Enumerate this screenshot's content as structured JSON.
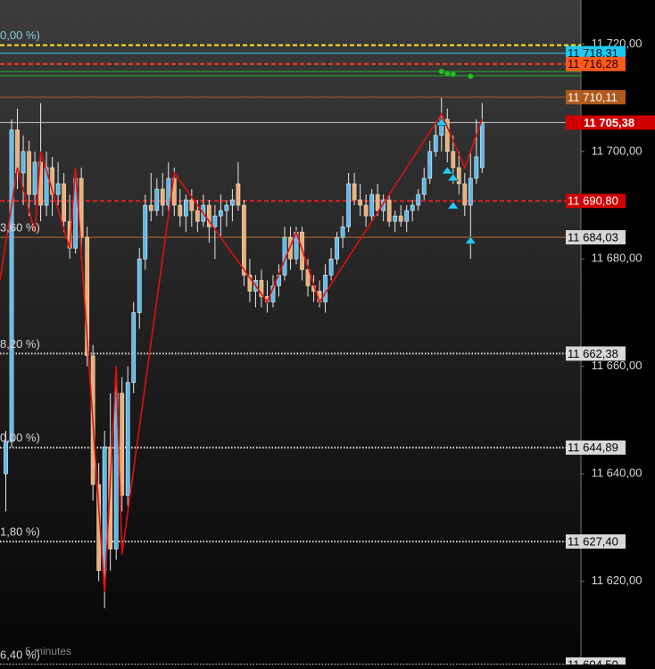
{
  "chart_data": {
    "type": "candlestick",
    "timeframe": "5 minutes",
    "xlim": [
      -1,
      99
    ],
    "ylim": [
      11604.5,
      11728.2
    ],
    "yticks": [
      {
        "value": 11620,
        "label": "11 620,00"
      },
      {
        "value": 11640,
        "label": "11 640,00"
      },
      {
        "value": 11660,
        "label": "11 660,00"
      },
      {
        "value": 11680,
        "label": "11 680,00"
      },
      {
        "value": 11700,
        "label": "11 700,00"
      },
      {
        "value": 11720,
        "label": "11 720,00"
      }
    ],
    "up_color": "#5cb9ea",
    "down_color": "#e8b07a",
    "candles": [
      [
        11640,
        11648,
        11633,
        11646
      ],
      [
        11646,
        11706,
        11645,
        11704
      ],
      [
        11704,
        11708,
        11693,
        11696
      ],
      [
        11696,
        11703,
        11690,
        11700
      ],
      [
        11700,
        11702,
        11688,
        11692
      ],
      [
        11692,
        11700,
        11690,
        11698
      ],
      [
        11698,
        11709,
        11687,
        11690
      ],
      [
        11690,
        11700,
        11688,
        11697
      ],
      [
        11697,
        11699,
        11688,
        11692
      ],
      [
        11692,
        11698,
        11690,
        11694
      ],
      [
        11694,
        11696,
        11685,
        11687
      ],
      [
        11687,
        11692,
        11680,
        11682
      ],
      [
        11682,
        11697,
        11681,
        11695
      ],
      [
        11695,
        11697,
        11680,
        11684
      ],
      [
        11684,
        11686,
        11660,
        11662
      ],
      [
        11662,
        11664,
        11635,
        11638
      ],
      [
        11638,
        11642,
        11620,
        11622
      ],
      [
        11622,
        11648,
        11615,
        11645
      ],
      [
        11645,
        11655,
        11622,
        11626
      ],
      [
        11626,
        11660,
        11624,
        11655
      ],
      [
        11655,
        11658,
        11633,
        11636
      ],
      [
        11636,
        11660,
        11634,
        11657
      ],
      [
        11657,
        11672,
        11655,
        11670
      ],
      [
        11670,
        11682,
        11667,
        11680
      ],
      [
        11680,
        11692,
        11678,
        11690
      ],
      [
        11690,
        11696,
        11687,
        11689
      ],
      [
        11689,
        11695,
        11688,
        11693
      ],
      [
        11693,
        11696,
        11688,
        11690
      ],
      [
        11690,
        11698,
        11689,
        11695
      ],
      [
        11695,
        11697,
        11688,
        11690
      ],
      [
        11690,
        11693,
        11686,
        11688
      ],
      [
        11688,
        11692,
        11685,
        11691
      ],
      [
        11691,
        11693,
        11686,
        11689
      ],
      [
        11689,
        11691,
        11685,
        11687
      ],
      [
        11687,
        11692,
        11686,
        11690
      ],
      [
        11690,
        11691,
        11683,
        11686
      ],
      [
        11686,
        11690,
        11680,
        11688
      ],
      [
        11688,
        11692,
        11684,
        11689
      ],
      [
        11689,
        11691,
        11686,
        11690
      ],
      [
        11690,
        11693,
        11687,
        11691
      ],
      [
        11694,
        11698,
        11689,
        11690
      ],
      [
        11690,
        11691,
        11675,
        11677
      ],
      [
        11677,
        11680,
        11672,
        11674
      ],
      [
        11674,
        11677,
        11671,
        11676
      ],
      [
        11676,
        11678,
        11671,
        11673
      ],
      [
        11673,
        11676,
        11670,
        11672
      ],
      [
        11672,
        11677,
        11671,
        11675
      ],
      [
        11675,
        11679,
        11673,
        11677
      ],
      [
        11677,
        11686,
        11676,
        11684
      ],
      [
        11684,
        11686,
        11678,
        11680
      ],
      [
        11680,
        11686,
        11679,
        11685
      ],
      [
        11685,
        11686,
        11676,
        11678
      ],
      [
        11678,
        11680,
        11673,
        11675
      ],
      [
        11675,
        11677,
        11672,
        11674
      ],
      [
        11674,
        11676,
        11671,
        11672
      ],
      [
        11672,
        11679,
        11670,
        11677
      ],
      [
        11677,
        11682,
        11676,
        11680
      ],
      [
        11680,
        11685,
        11679,
        11684
      ],
      [
        11684,
        11688,
        11682,
        11686
      ],
      [
        11686,
        11696,
        11685,
        11694
      ],
      [
        11694,
        11696,
        11690,
        11691
      ],
      [
        11691,
        11694,
        11688,
        11690
      ],
      [
        11690,
        11692,
        11686,
        11688
      ],
      [
        11688,
        11693,
        11687,
        11692
      ],
      [
        11692,
        11694,
        11688,
        11689
      ],
      [
        11689,
        11692,
        11687,
        11691
      ],
      [
        11691,
        11692,
        11686,
        11687
      ],
      [
        11687,
        11689,
        11685,
        11688
      ],
      [
        11688,
        11690,
        11686,
        11687
      ],
      [
        11687,
        11690,
        11685,
        11689
      ],
      [
        11689,
        11691,
        11687,
        11690
      ],
      [
        11690,
        11693,
        11689,
        11692
      ],
      [
        11692,
        11697,
        11691,
        11695
      ],
      [
        11695,
        11702,
        11694,
        11700
      ],
      [
        11700,
        11705,
        11699,
        11703
      ],
      [
        11703,
        11710,
        11700,
        11706
      ],
      [
        11706,
        11708,
        11698,
        11700
      ],
      [
        11700,
        11703,
        11694,
        11697
      ],
      [
        11697,
        11700,
        11692,
        11694
      ],
      [
        11694,
        11696,
        11688,
        11690
      ],
      [
        11690,
        11700,
        11680,
        11695
      ],
      [
        11695,
        11706,
        11694,
        11699
      ],
      [
        11697,
        11709,
        11696,
        11705.38
      ]
    ],
    "zigzag": {
      "color": "#e01010",
      "x": [
        -1,
        2,
        5,
        6,
        11,
        12,
        17,
        19,
        20,
        29,
        45,
        50,
        54,
        75,
        79,
        82
      ],
      "values": [
        11676,
        11697,
        11685,
        11700,
        11682,
        11697,
        11618,
        11660,
        11625,
        11696,
        11672,
        11685,
        11672,
        11707,
        11697,
        11706
      ]
    },
    "markers": [
      {
        "shape": "triangle",
        "color": "#2ec8f0",
        "x": [
          75,
          76,
          77,
          77,
          80
        ],
        "values": [
          11705.5,
          11696.5,
          11695.2,
          11690,
          11683.5
        ]
      },
      {
        "shape": "dot",
        "color": "#22c022",
        "x": [
          75,
          76,
          77,
          80
        ],
        "values": [
          11714.9,
          11714.5,
          11714.4,
          11714
        ]
      }
    ],
    "levels": [
      {
        "value": 11719.8,
        "color": "#ffe81a",
        "style": "dashed",
        "note": "0,00 %)"
      },
      {
        "value": 11718.31,
        "label": "11 718,31",
        "color": "#33ccee",
        "style": "solid",
        "label_bg": "#1ec8f0",
        "label_fg": "#001018"
      },
      {
        "value": 11716.28,
        "label": "11 716,28",
        "color": "#ff3b1f",
        "style": "dashed",
        "label_bg": "#ff5a1a",
        "label_fg": "#200000"
      },
      {
        "value": 11714.9,
        "color": "#22aa22",
        "style": "solid"
      },
      {
        "value": 11714.1,
        "color": "#22aa22",
        "style": "solid"
      },
      {
        "value": 11710.11,
        "label": "11 710,11",
        "color": "#b05a1e",
        "style": "solid",
        "label_bg": "#b05a1e",
        "label_fg": "#ffffff"
      },
      {
        "value": 11705.38,
        "label": "11 705,38",
        "color": "#c8c8c8",
        "style": "solid",
        "label_bg": "#d00000",
        "label_fg": "#ffffff"
      },
      {
        "value": 11690.8,
        "label": "11 690,80",
        "color": "#e02020",
        "style": "dashed",
        "label_bg": "#d00000",
        "label_fg": "#ffffff"
      },
      {
        "value": 11684.03,
        "label": "11 684,03",
        "color": "#c07030",
        "style": "solid",
        "label_bg": "#d8d8d8",
        "label_fg": "#000000",
        "note": "3,60 %)"
      },
      {
        "value": 11662.38,
        "label": "11 662,38",
        "color": "#e0e0e0",
        "style": "dotted",
        "label_bg": "#d8d8d8",
        "label_fg": "#000000",
        "note": "8,20 %)"
      },
      {
        "value": 11644.89,
        "label": "11 644,89",
        "color": "#e0e0e0",
        "style": "dotted",
        "label_bg": "#d8d8d8",
        "label_fg": "#000000",
        "note": "0,00 %)"
      },
      {
        "value": 11627.4,
        "label": "11 627,40",
        "color": "#e0e0e0",
        "style": "dotted",
        "label_bg": "#d8d8d8",
        "label_fg": "#000000",
        "note": "1,80 %)"
      },
      {
        "value": 11604.5,
        "label": "11 604,50",
        "color": "#e0e0e0",
        "style": "dotted",
        "label_bg": "#d8d8d8",
        "label_fg": "#000000",
        "note": "6,40 %)"
      }
    ]
  }
}
